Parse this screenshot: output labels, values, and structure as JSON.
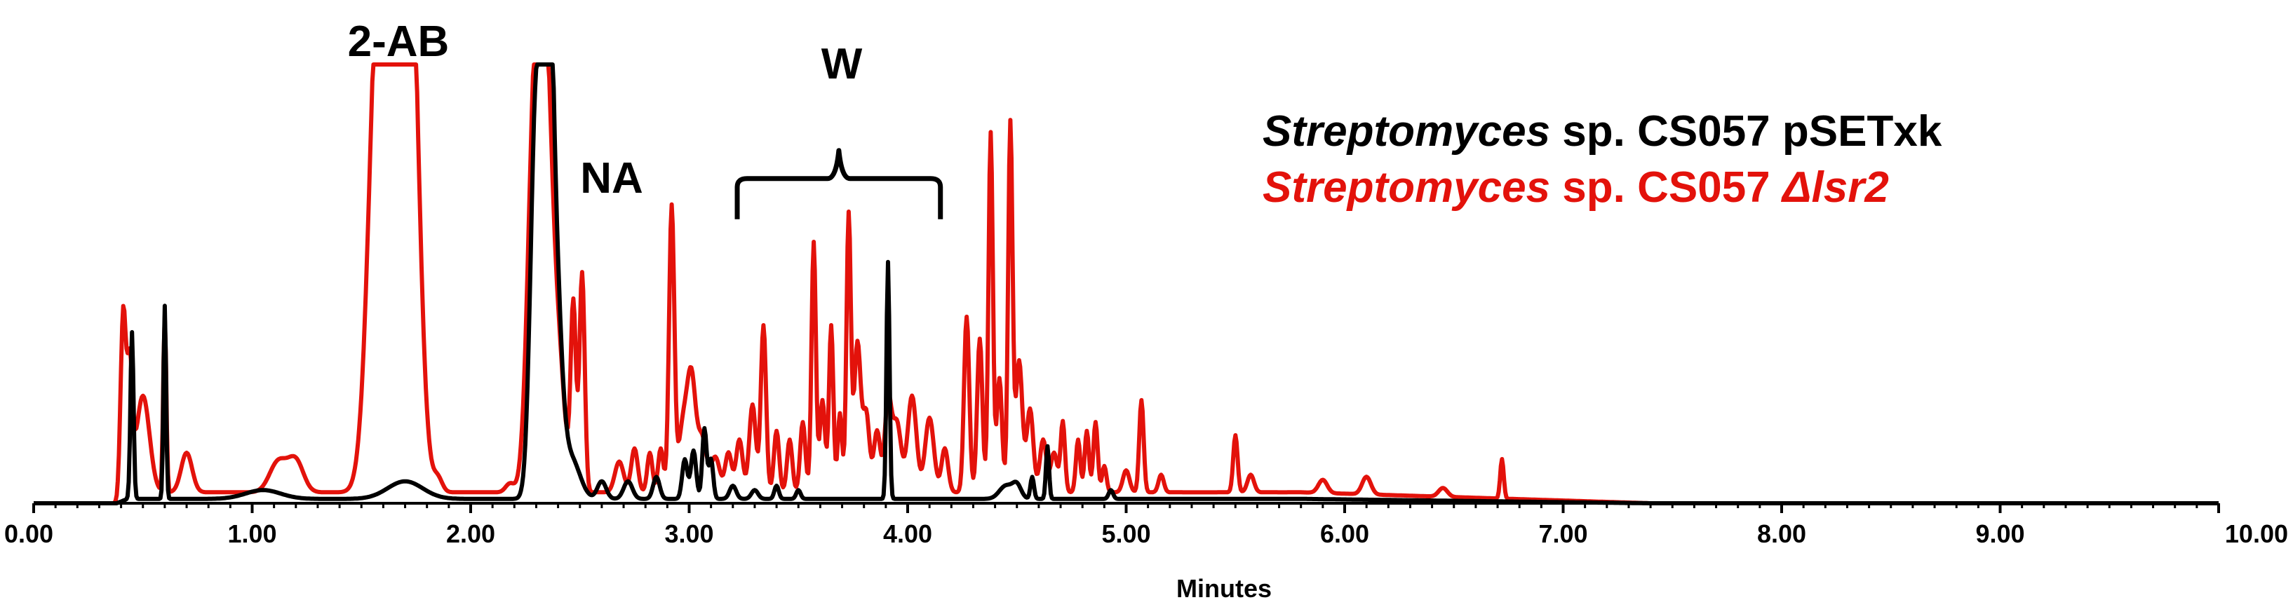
{
  "chart_data": {
    "type": "line",
    "title": "",
    "xlabel": "Minutes",
    "ylabel": "",
    "xlim": [
      0,
      10
    ],
    "ylim": [
      0,
      100
    ],
    "x_ticks": [
      0,
      1,
      2,
      3,
      4,
      5,
      6,
      7,
      8,
      9,
      10
    ],
    "x_tick_labels": [
      "0.00",
      "1.00",
      "2.00",
      "3.00",
      "4.00",
      "5.00",
      "6.00",
      "7.00",
      "8.00",
      "9.00",
      "10.00"
    ],
    "grid": false,
    "legend": {
      "placement": "top-right",
      "entries": [
        {
          "name_italic": "Streptomyces",
          "name_rest_a": " sp. CS057 pSETxk",
          "name_rest_b": ""
        },
        {
          "name_italic": "Streptomyces",
          "name_rest_a": " sp. CS057 ",
          "name_rest_b": "Δlsr2"
        }
      ]
    },
    "annotations": [
      {
        "text": "2-AB",
        "x": 1.65
      },
      {
        "text": "NA",
        "x": 2.6
      },
      {
        "text": "W",
        "x": 3.65
      }
    ],
    "w_bracket": {
      "x_start": 3.22,
      "x_end": 4.15,
      "y": 74
    },
    "series": [
      {
        "name": "Streptomyces sp. CS057 Δlsr2",
        "color": "#e3120b",
        "baseline": 2.5,
        "peaks": [
          [
            0.41,
            42,
            0.012
          ],
          [
            0.44,
            28,
            0.012
          ],
          [
            0.5,
            22,
            0.03
          ],
          [
            0.6,
            40,
            0.007
          ],
          [
            0.7,
            9,
            0.025
          ],
          [
            1.12,
            7,
            0.04
          ],
          [
            1.2,
            7,
            0.035
          ],
          [
            1.58,
            96,
            0.045
          ],
          [
            1.66,
            90,
            0.06
          ],
          [
            1.72,
            96,
            0.04
          ],
          [
            1.85,
            3,
            0.02
          ],
          [
            2.18,
            2,
            0.02
          ],
          [
            2.29,
            78,
            0.03
          ],
          [
            2.34,
            96,
            0.03
          ],
          [
            2.4,
            30,
            0.03
          ],
          [
            2.47,
            42,
            0.012
          ],
          [
            2.51,
            50,
            0.012
          ],
          [
            2.68,
            7,
            0.02
          ],
          [
            2.75,
            10,
            0.015
          ],
          [
            2.82,
            9,
            0.012
          ],
          [
            2.87,
            10,
            0.012
          ],
          [
            2.92,
            65,
            0.012
          ],
          [
            2.97,
            14,
            0.02
          ],
          [
            3.01,
            26,
            0.02
          ],
          [
            3.06,
            12,
            0.02
          ],
          [
            3.12,
            8,
            0.02
          ],
          [
            3.18,
            9,
            0.015
          ],
          [
            3.23,
            12,
            0.015
          ],
          [
            3.29,
            20,
            0.015
          ],
          [
            3.34,
            38,
            0.012
          ],
          [
            3.4,
            14,
            0.012
          ],
          [
            3.46,
            12,
            0.012
          ],
          [
            3.52,
            16,
            0.012
          ],
          [
            3.57,
            57,
            0.01
          ],
          [
            3.61,
            21,
            0.012
          ],
          [
            3.65,
            38,
            0.01
          ],
          [
            3.69,
            18,
            0.01
          ],
          [
            3.73,
            63,
            0.01
          ],
          [
            3.77,
            34,
            0.015
          ],
          [
            3.81,
            18,
            0.015
          ],
          [
            3.86,
            14,
            0.015
          ],
          [
            3.91,
            20,
            0.015
          ],
          [
            3.95,
            16,
            0.02
          ],
          [
            4.02,
            22,
            0.02
          ],
          [
            4.1,
            17,
            0.02
          ],
          [
            4.17,
            10,
            0.015
          ],
          [
            4.27,
            40,
            0.012
          ],
          [
            4.33,
            35,
            0.012
          ],
          [
            4.38,
            82,
            0.01
          ],
          [
            4.42,
            26,
            0.012
          ],
          [
            4.47,
            84,
            0.01
          ],
          [
            4.51,
            30,
            0.015
          ],
          [
            4.56,
            19,
            0.015
          ],
          [
            4.62,
            12,
            0.015
          ],
          [
            4.67,
            9,
            0.015
          ],
          [
            4.71,
            16,
            0.01
          ],
          [
            4.78,
            12,
            0.01
          ],
          [
            4.82,
            14,
            0.01
          ],
          [
            4.86,
            16,
            0.01
          ],
          [
            4.9,
            6,
            0.01
          ],
          [
            5.0,
            5,
            0.015
          ],
          [
            5.07,
            21,
            0.01
          ],
          [
            5.16,
            4,
            0.012
          ],
          [
            5.5,
            13,
            0.01
          ],
          [
            5.57,
            4,
            0.015
          ],
          [
            5.9,
            3,
            0.02
          ],
          [
            6.1,
            4,
            0.02
          ],
          [
            6.45,
            2,
            0.02
          ],
          [
            6.72,
            9,
            0.008
          ]
        ]
      },
      {
        "name": "Streptomyces sp. CS057 pSETxk",
        "color": "#000000",
        "baseline": 1.0,
        "peaks": [
          [
            0.45,
            38,
            0.007
          ],
          [
            0.6,
            44,
            0.006
          ],
          [
            1.05,
            2,
            0.08
          ],
          [
            1.7,
            4,
            0.08
          ],
          [
            2.3,
            92,
            0.025
          ],
          [
            2.35,
            98,
            0.02
          ],
          [
            2.38,
            60,
            0.03
          ],
          [
            2.46,
            9,
            0.04
          ],
          [
            2.6,
            4,
            0.02
          ],
          [
            2.72,
            4,
            0.02
          ],
          [
            2.85,
            5,
            0.015
          ],
          [
            2.98,
            9,
            0.012
          ],
          [
            3.02,
            11,
            0.012
          ],
          [
            3.07,
            16,
            0.01
          ],
          [
            3.1,
            9,
            0.01
          ],
          [
            3.2,
            3,
            0.015
          ],
          [
            3.3,
            2,
            0.015
          ],
          [
            3.4,
            3,
            0.01
          ],
          [
            3.5,
            2,
            0.01
          ],
          [
            3.91,
            54,
            0.007
          ],
          [
            4.45,
            3,
            0.03
          ],
          [
            4.5,
            3,
            0.02
          ],
          [
            4.57,
            5,
            0.008
          ],
          [
            4.64,
            12,
            0.007
          ],
          [
            4.93,
            2,
            0.01
          ]
        ]
      }
    ]
  }
}
